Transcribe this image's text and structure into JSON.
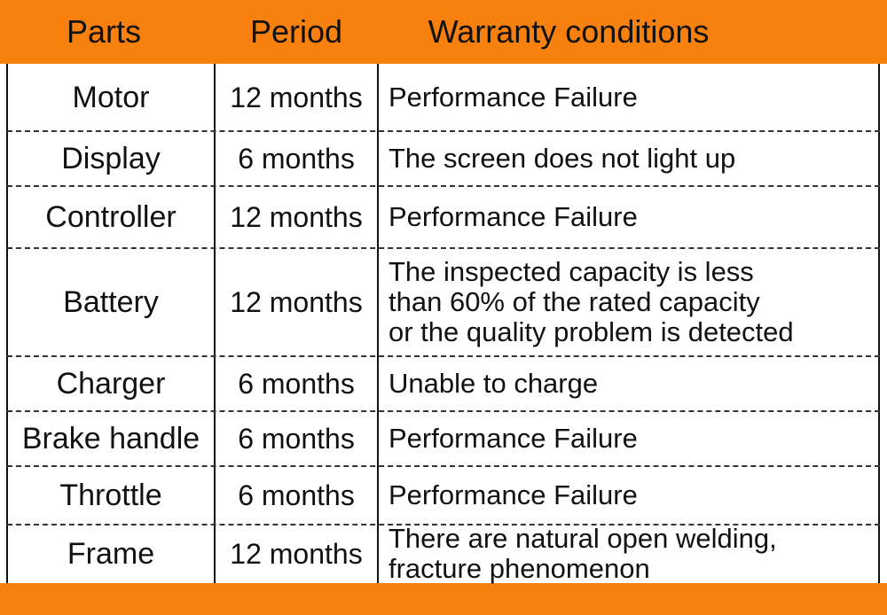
{
  "table": {
    "header": [
      "Parts",
      "Period",
      "Warranty conditions"
    ],
    "rows": [
      [
        "Motor",
        "12 months",
        [
          "Performance Failure"
        ]
      ],
      [
        "Display",
        "6 months",
        [
          "The screen does not light up"
        ]
      ],
      [
        "Controller",
        "12 months",
        [
          "Performance Failure"
        ]
      ],
      [
        "Battery",
        "12 months",
        [
          "The inspected capacity is less",
          "than 60% of the rated capacity",
          "or the quality problem is detected"
        ]
      ],
      [
        "Charger",
        "6 months",
        [
          "Unable to charge"
        ]
      ],
      [
        "Brake handle",
        "6 months",
        [
          "Performance Failure"
        ]
      ],
      [
        "Throttle",
        "6 months",
        [
          "Performance Failure"
        ]
      ],
      [
        "Frame",
        "12 months",
        [
          "There are natural open welding,",
          "fracture phenomenon"
        ]
      ]
    ]
  }
}
